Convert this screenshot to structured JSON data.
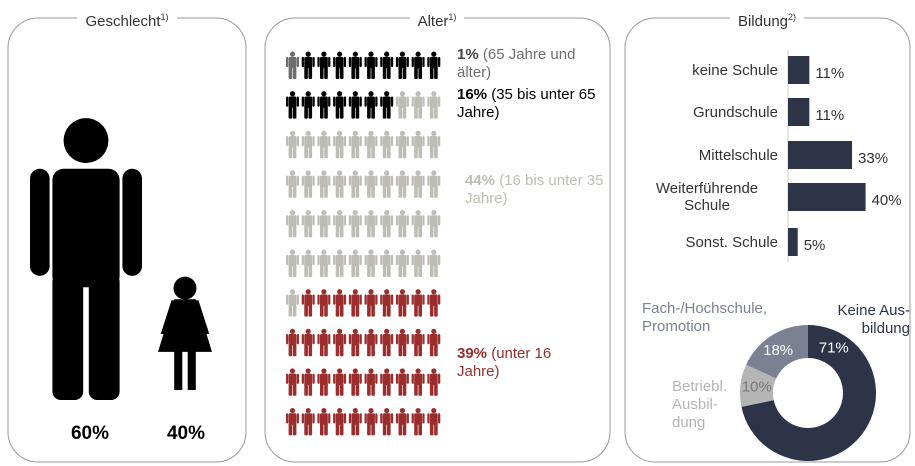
{
  "chart_data": [
    {
      "type": "gender",
      "title": "Geschlecht",
      "title_note": "1)",
      "values": [
        60,
        40
      ],
      "value_labels": [
        "60%",
        "40%"
      ],
      "color": "#000000"
    },
    {
      "type": "pictogram",
      "title": "Alter",
      "title_note": "1)",
      "series": [
        {
          "name": "(65 Jahre und älter)",
          "color": "#6e6e6e",
          "values": [
            1
          ],
          "value_labels": [
            "1%"
          ]
        },
        {
          "name": "(35 bis unter 65 Jahre)",
          "color": "#000000",
          "values": [
            16
          ],
          "value_labels": [
            "16%"
          ]
        },
        {
          "name": "(16 bis unter 35 Jahre)",
          "color": "#bdbdb5",
          "values": [
            44
          ],
          "value_labels": [
            "44%"
          ]
        },
        {
          "name": "(unter 16 Jahre)",
          "color": "#9b2d2d",
          "values": [
            39
          ],
          "value_labels": [
            "39%"
          ]
        }
      ]
    },
    {
      "type": "bar",
      "title": "Bildung",
      "title_note": "2)",
      "categories": [
        "keine Schule",
        "Grundschule",
        "Mittelschule",
        "Weiterführende Schule",
        "Sonst. Schule"
      ],
      "values": [
        11,
        11,
        33,
        40,
        5
      ],
      "value_labels": [
        "11%",
        "11%",
        "33%",
        "40%",
        "5%"
      ],
      "color": "#2d3447",
      "xlim": [
        0,
        50
      ]
    },
    {
      "type": "pie",
      "donut": true,
      "categories": [
        "Keine Aus-\nbildung",
        "Betriebl.\nAusbil-\ndung",
        "Fach-/Hochschule,\nPromotion"
      ],
      "values": [
        71,
        10,
        18
      ],
      "value_labels": [
        "71%",
        "10%",
        "18%"
      ],
      "colors": [
        "#2d3447",
        "#b5b5b5",
        "#7b8192"
      ]
    }
  ]
}
